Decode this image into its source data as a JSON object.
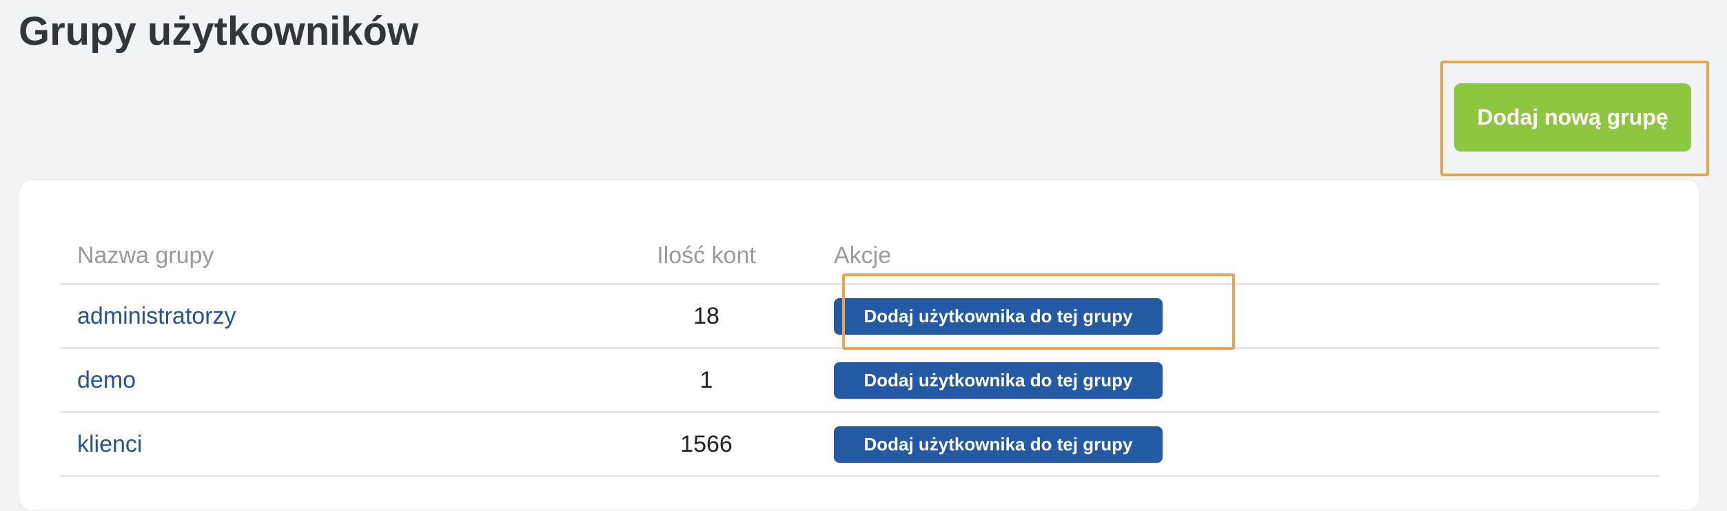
{
  "page_title": "Grupy użytkowników",
  "add_group_button": "Dodaj nową grupę",
  "table": {
    "headers": [
      "Nazwa grupy",
      "Ilość kont",
      "Akcje"
    ],
    "rows": [
      {
        "name": "administratorzy",
        "count": "18",
        "action": "Dodaj użytkownika do tej grupy"
      },
      {
        "name": "demo",
        "count": "1",
        "action": "Dodaj użytkownika do tej grupy"
      },
      {
        "name": "klienci",
        "count": "1566",
        "action": "Dodaj użytkownika do tej grupy"
      }
    ]
  },
  "colors": {
    "green_button": "#8dc63f",
    "blue_button": "#235aa3",
    "highlight": "#e8a54b",
    "link": "#25558e"
  }
}
